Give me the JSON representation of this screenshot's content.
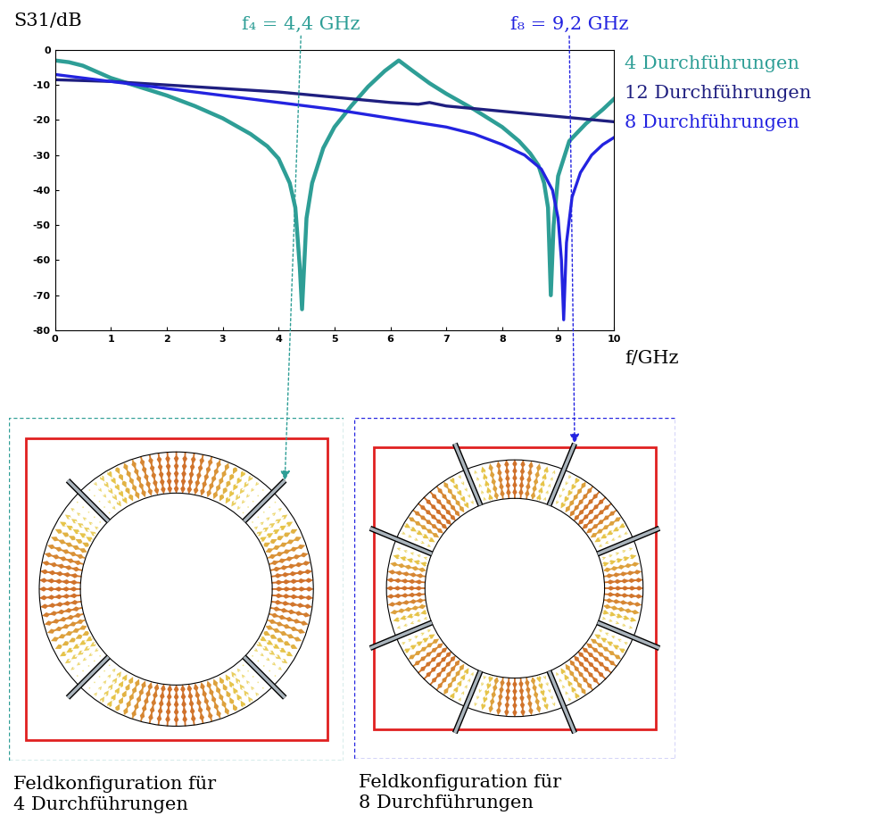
{
  "chart_data": {
    "type": "line",
    "y_label": "S31/dB",
    "x_label": "f/GHz",
    "xlim": [
      0,
      10
    ],
    "xticks": [
      0,
      1,
      2,
      3,
      4,
      5,
      6,
      7,
      8,
      9,
      10
    ],
    "ylim": [
      -80,
      0
    ],
    "yticks": [
      -80,
      -70,
      -60,
      -50,
      -40,
      -30,
      -20,
      -10,
      0
    ],
    "annotations": [
      {
        "text": "f₄ = 4,4 GHz",
        "x": 4.4,
        "color": "#2e9e96"
      },
      {
        "text": "f₈ = 9,2 GHz",
        "x": 9.2,
        "color": "#2323e0"
      }
    ],
    "series": [
      {
        "name": "4 Durchführungen",
        "color": "#2e9e96",
        "x": [
          0,
          0.25,
          0.5,
          1,
          1.5,
          2,
          2.5,
          3,
          3.5,
          3.8,
          4.0,
          4.2,
          4.3,
          4.38,
          4.42,
          4.5,
          4.6,
          4.8,
          5.0,
          5.3,
          5.6,
          5.9,
          6.15,
          6.4,
          6.7,
          7.0,
          7.5,
          8.0,
          8.3,
          8.5,
          8.65,
          8.75,
          8.82,
          8.87,
          8.92,
          9.0,
          9.2,
          9.5,
          9.8,
          10
        ],
        "values": [
          -3,
          -3.5,
          -4.5,
          -8,
          -10.5,
          -13,
          -16,
          -19.5,
          -24,
          -27.5,
          -31,
          -38,
          -45,
          -62,
          -74,
          -48,
          -38,
          -28,
          -22,
          -16,
          -10.5,
          -6,
          -3,
          -6,
          -9.5,
          -12.5,
          -17,
          -22,
          -26,
          -29.5,
          -33,
          -38,
          -45,
          -70,
          -50,
          -36,
          -26,
          -21,
          -17,
          -14
        ]
      },
      {
        "name": "12 Durchführungen",
        "color": "#1f1f80",
        "x": [
          0,
          1,
          2,
          3,
          4,
          5,
          6,
          6.5,
          6.7,
          7,
          8,
          9,
          10
        ],
        "values": [
          -8.5,
          -9,
          -10,
          -11,
          -12,
          -13.5,
          -15,
          -15.5,
          -15,
          -16,
          -17.5,
          -19,
          -20.5
        ]
      },
      {
        "name": "8 Durchführungen",
        "color": "#2323e0",
        "x": [
          0,
          1,
          2,
          3,
          4,
          5,
          6,
          7,
          7.5,
          8,
          8.4,
          8.7,
          8.9,
          9.0,
          9.06,
          9.1,
          9.15,
          9.25,
          9.4,
          9.6,
          9.8,
          10
        ],
        "values": [
          -7,
          -9,
          -11,
          -13,
          -15,
          -17,
          -19.5,
          -22,
          -24,
          -27,
          -30,
          -34,
          -40,
          -48,
          -60,
          -77,
          -55,
          -42,
          -35,
          -30,
          -27,
          -25
        ]
      }
    ]
  },
  "diagrams": [
    {
      "caption": "Feldkonfiguration für\n4 Durchführungen",
      "feedthroughs": 4,
      "color": "#2e9e96"
    },
    {
      "caption": "Feldkonfiguration für\n8 Durchführungen",
      "feedthroughs": 8,
      "color": "#2323e0"
    }
  ]
}
